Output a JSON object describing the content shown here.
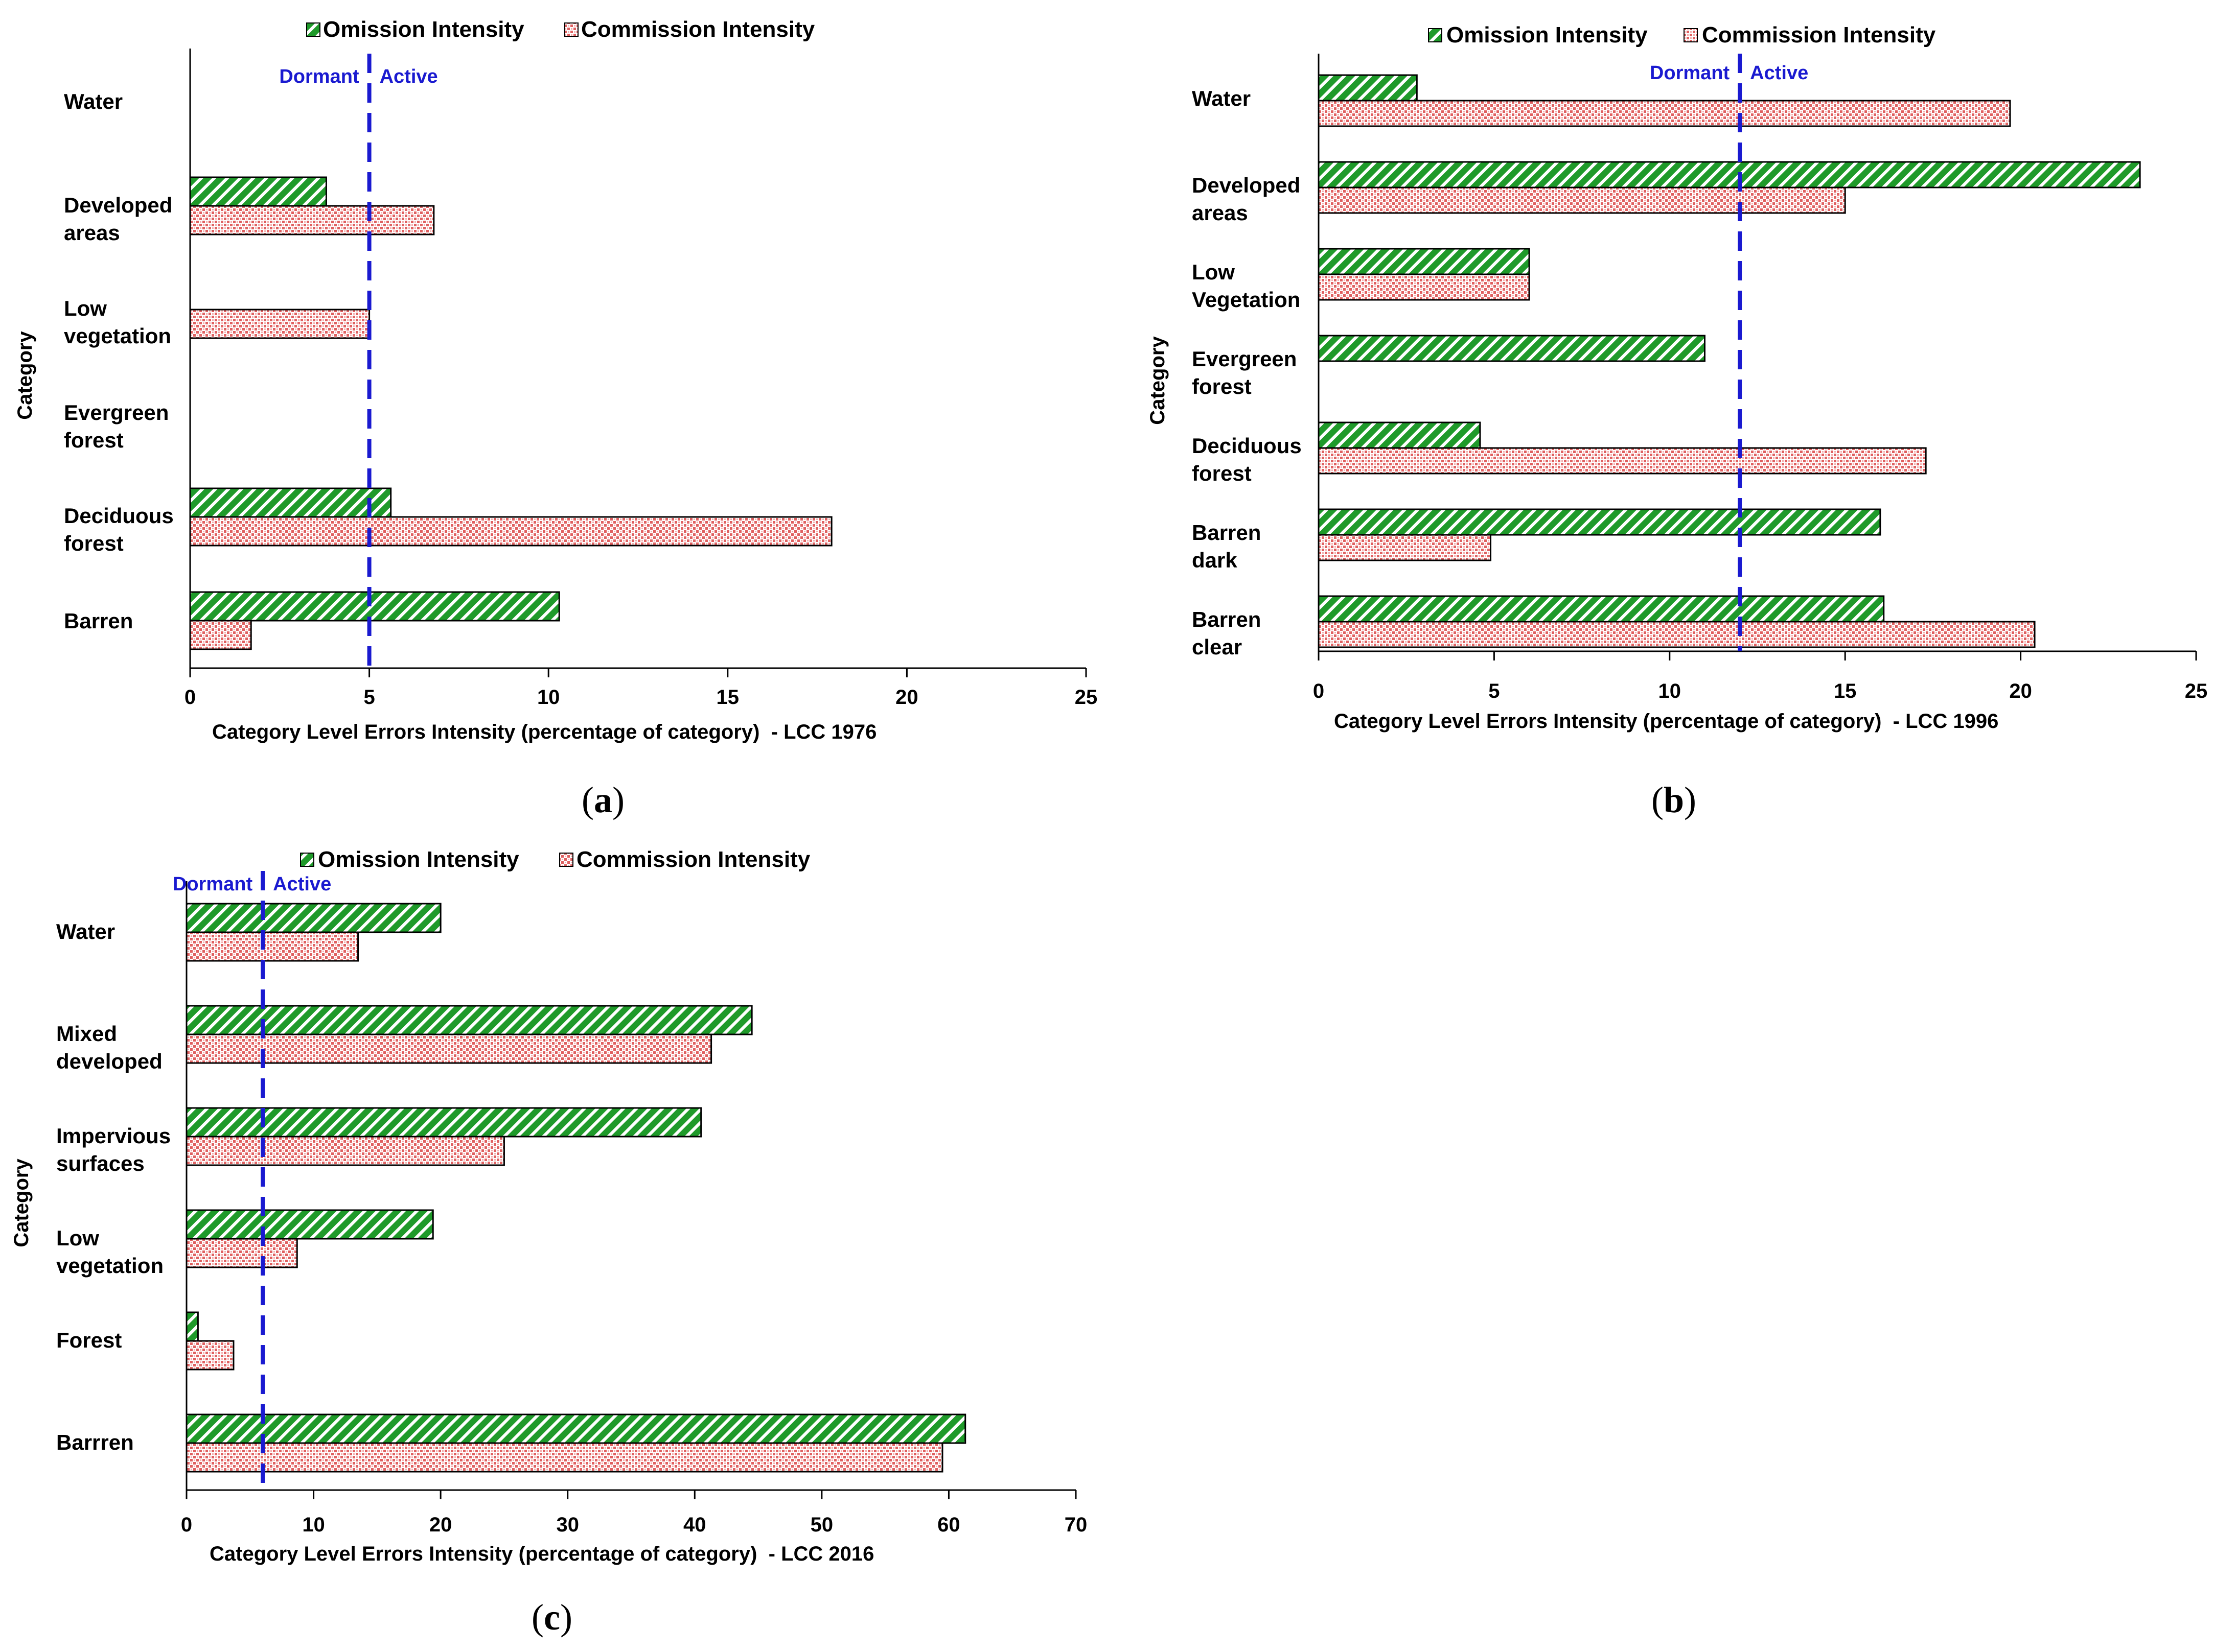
{
  "legend": {
    "omission": "Omission Intensity",
    "commission": "Commission Intensity"
  },
  "threshold_labels": {
    "dormant": "Dormant",
    "active": "Active"
  },
  "colors": {
    "omission": "#1f9a2a",
    "commission": "#f0a0a0",
    "threshold": "#1a1ad0"
  },
  "chart_data": [
    {
      "type": "bar",
      "orientation": "horizontal",
      "panel": "a",
      "title": "",
      "ylabel": "Category",
      "xlabel": "Category Level Errors Intensity (percentage of category)  - LCC 1976",
      "xlim": [
        0,
        25
      ],
      "xticks": [
        0,
        5,
        10,
        15,
        20,
        25
      ],
      "threshold": 5,
      "categories": [
        [
          "Water"
        ],
        [
          "Developed",
          "areas"
        ],
        [
          "Low",
          "vegetation"
        ],
        [
          "Evergreen",
          "forest"
        ],
        [
          "Deciduous",
          "forest"
        ],
        [
          "Barren"
        ]
      ],
      "series": [
        {
          "name": "Omission Intensity",
          "values": [
            0,
            3.8,
            0,
            0,
            5.6,
            10.3
          ]
        },
        {
          "name": "Commission Intensity",
          "values": [
            0,
            6.8,
            5.0,
            0,
            17.9,
            1.7
          ]
        }
      ]
    },
    {
      "type": "bar",
      "orientation": "horizontal",
      "panel": "b",
      "title": "",
      "ylabel": "Category",
      "xlabel": "Category Level Errors Intensity (percentage of category)  - LCC 1996",
      "xlim": [
        0,
        25
      ],
      "xticks": [
        0,
        5,
        10,
        15,
        20,
        25
      ],
      "threshold": 12,
      "categories": [
        [
          "Water"
        ],
        [
          "Developed",
          "areas"
        ],
        [
          "Low",
          "Vegetation"
        ],
        [
          "Evergreen",
          "forest"
        ],
        [
          "Deciduous",
          "forest"
        ],
        [
          "Barren",
          "dark"
        ],
        [
          "Barren",
          "clear"
        ]
      ],
      "series": [
        {
          "name": "Omission Intensity",
          "values": [
            2.8,
            23.4,
            6.0,
            11.0,
            4.6,
            16.0,
            16.1
          ]
        },
        {
          "name": "Commission Intensity",
          "values": [
            19.7,
            15.0,
            6.0,
            0,
            17.3,
            4.9,
            20.4
          ]
        }
      ]
    },
    {
      "type": "bar",
      "orientation": "horizontal",
      "panel": "c",
      "title": "",
      "ylabel": "Category",
      "xlabel": "Category Level Errors Intensity (percentage of category)  - LCC 2016",
      "xlim": [
        0,
        70
      ],
      "xticks": [
        0,
        10,
        20,
        30,
        40,
        50,
        60,
        70
      ],
      "threshold": 6,
      "categories": [
        [
          "Water"
        ],
        [
          "Mixed",
          "developed"
        ],
        [
          "Impervious",
          "surfaces"
        ],
        [
          "Low",
          "vegetation"
        ],
        [
          "Forest"
        ],
        [
          "Barrren"
        ]
      ],
      "series": [
        {
          "name": "Omission Intensity",
          "values": [
            20.0,
            44.5,
            40.5,
            19.4,
            0.9,
            61.3
          ]
        },
        {
          "name": "Commission Intensity",
          "values": [
            13.5,
            41.3,
            25.0,
            8.7,
            3.7,
            59.5
          ]
        }
      ]
    }
  ]
}
